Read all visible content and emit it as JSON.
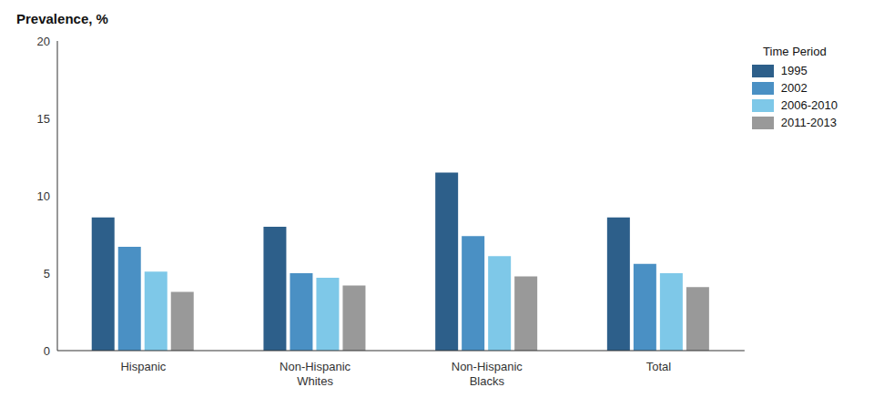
{
  "chart_data": {
    "type": "bar",
    "title": "Prevalence, %",
    "categories": [
      "Hispanic",
      "Non-Hispanic\nWhites",
      "Non-Hispanic\nBlacks",
      "Total"
    ],
    "series": [
      {
        "name": "1995",
        "color": "#2d5f8a",
        "values": [
          8.6,
          8.0,
          11.5,
          8.6
        ]
      },
      {
        "name": "2002",
        "color": "#4a90c4",
        "values": [
          6.7,
          5.0,
          7.4,
          5.6
        ]
      },
      {
        "name": "2006-2010",
        "color": "#7ec8e8",
        "values": [
          5.1,
          4.7,
          6.1,
          5.0
        ]
      },
      {
        "name": "2011-2013",
        "color": "#999999",
        "values": [
          3.8,
          4.2,
          4.8,
          4.1
        ]
      }
    ],
    "ylim": [
      0,
      20
    ],
    "yticks": [
      0,
      5,
      10,
      15,
      20
    ],
    "grid": false,
    "legend": "upper right",
    "legend_title": "Time Period"
  }
}
